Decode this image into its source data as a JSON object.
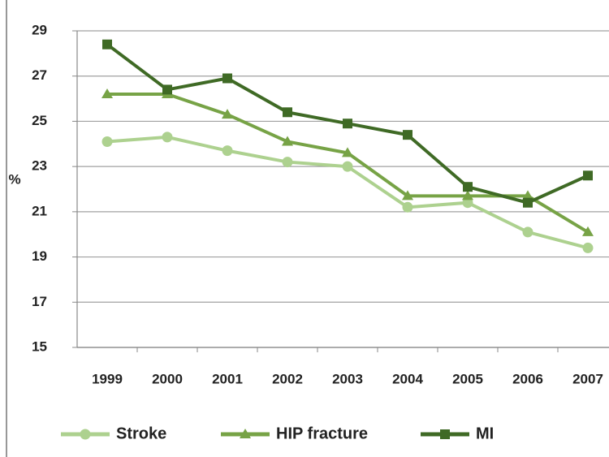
{
  "chart_data": {
    "type": "line",
    "y_label": "%",
    "categories": [
      "1999",
      "2000",
      "2001",
      "2002",
      "2003",
      "2004",
      "2005",
      "2006",
      "2007"
    ],
    "series": [
      {
        "name": "Stroke",
        "color": "#add18f",
        "marker": "circle",
        "values": [
          24.1,
          24.3,
          23.7,
          23.2,
          23.0,
          21.2,
          21.4,
          20.1,
          19.4
        ]
      },
      {
        "name": "HIP fracture",
        "color": "#77a346",
        "marker": "triangle",
        "values": [
          26.2,
          26.2,
          25.3,
          24.1,
          23.6,
          21.7,
          21.7,
          21.7,
          20.1
        ]
      },
      {
        "name": "MI",
        "color": "#3f6a25",
        "marker": "square",
        "values": [
          28.4,
          26.4,
          26.9,
          25.4,
          24.9,
          24.4,
          22.1,
          21.4,
          22.6
        ]
      }
    ],
    "ylim": [
      15,
      29
    ],
    "yticks": [
      15,
      17,
      19,
      21,
      23,
      25,
      27,
      29
    ],
    "grid": true,
    "legend": "bottom"
  }
}
